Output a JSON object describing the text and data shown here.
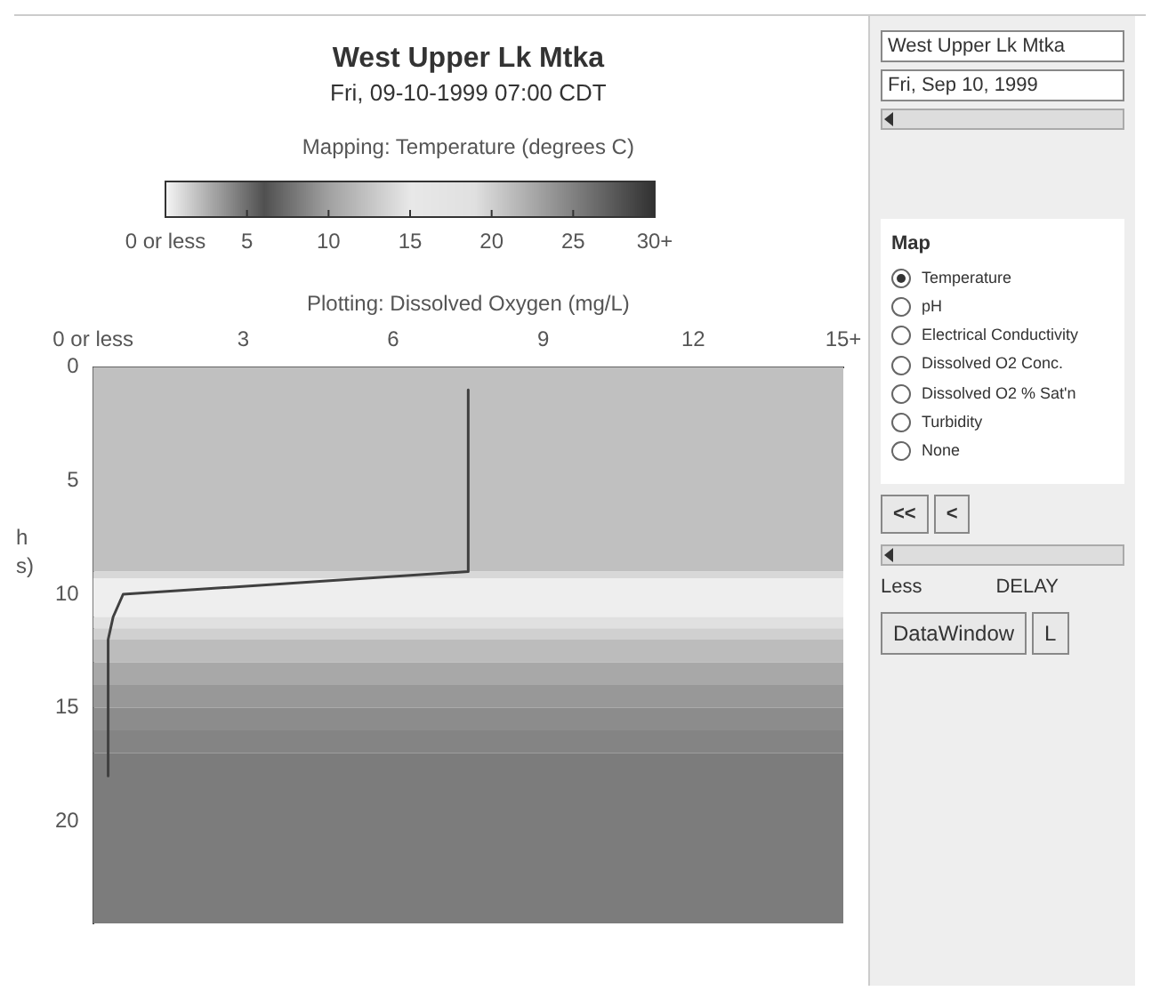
{
  "chart_data": [
    {
      "type": "line",
      "title": "West Upper Lk Mtka",
      "subtitle": "Fri, 09-10-1999 07:00 CDT",
      "clabel": "Mapping: Temperature (degrees C)",
      "xlabel": "Plotting: Dissolved Oxygen (mg/L)",
      "ylabel": "h\ns)",
      "xlim": [
        0,
        15
      ],
      "xticks": [
        {
          "value": 0,
          "label": "0 or less"
        },
        3,
        6,
        9,
        12,
        {
          "value": 15,
          "label": "15+"
        }
      ],
      "ylim": [
        24.5,
        0
      ],
      "yticks": [
        0,
        5,
        10,
        15,
        20
      ],
      "clim": [
        0,
        30
      ],
      "cticks": [
        {
          "value": 0,
          "label": "0 or less"
        },
        5,
        10,
        15,
        20,
        25,
        {
          "value": 30,
          "label": "30+"
        }
      ],
      "bands": [
        {
          "axis": "y",
          "from": 0,
          "to": 9,
          "color": "#c0c0c0"
        },
        {
          "axis": "y",
          "from": 9,
          "to": 9.3,
          "color": "#d8d8d8"
        },
        {
          "axis": "y",
          "from": 9.3,
          "to": 11,
          "color": "#eeeeee"
        },
        {
          "axis": "y",
          "from": 11,
          "to": 11.5,
          "color": "#e0e0e0"
        },
        {
          "axis": "y",
          "from": 11.5,
          "to": 12,
          "color": "#d0d0d0"
        },
        {
          "axis": "y",
          "from": 12,
          "to": 13,
          "color": "#bcbcbc"
        },
        {
          "axis": "y",
          "from": 13,
          "to": 14,
          "color": "#a8a8a8"
        },
        {
          "axis": "y",
          "from": 14,
          "to": 15,
          "color": "#989898"
        },
        {
          "axis": "y",
          "from": 15,
          "to": 16,
          "color": "#8c8c8c"
        },
        {
          "axis": "y",
          "from": 16,
          "to": 17,
          "color": "#848484"
        },
        {
          "axis": "y",
          "from": 17,
          "to": 24.5,
          "color": "#7c7c7c"
        }
      ],
      "series": [
        {
          "type": "line",
          "color": "#404040",
          "x": [
            7.5,
            7.5,
            7.5,
            7.5,
            7.5,
            7.5,
            7.5,
            7.5,
            7.5,
            0.6,
            0.4,
            0.3,
            0.3,
            0.3,
            0.3,
            0.3,
            0.3,
            0.3
          ],
          "values": [
            1,
            2,
            3,
            4,
            5,
            6,
            7,
            8,
            9,
            10,
            11,
            12,
            13,
            14,
            15,
            16,
            17,
            18
          ]
        }
      ],
      "grid": false,
      "legend": false
    },
    {
      "type": "other",
      "annotations": [
        "West Upper Lk Mtka",
        "Fri, Sep 10, 1999",
        "Map",
        "Temperature",
        "pH",
        "Electrical Conductivity",
        "Dissolved O2 Conc.",
        "Dissolved O2 % Sat'n",
        "Turbidity",
        "None",
        "<<",
        "<",
        "Less",
        "DELAY",
        "DataWindow",
        "L"
      ]
    }
  ]
}
